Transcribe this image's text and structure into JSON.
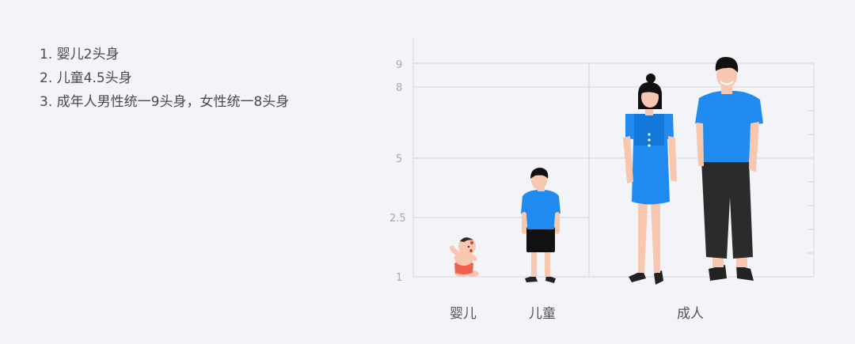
{
  "notes": [
    "1. 婴儿2头身",
    "2. 儿童4.5头身",
    "3. 成年人男性统一9头身，女性统一8头身"
  ],
  "scale": {
    "ticks": [
      "1",
      "2.5",
      "5",
      "8",
      "9"
    ]
  },
  "categories": {
    "baby": "婴儿",
    "child": "儿童",
    "adult": "成人"
  },
  "colors": {
    "background": "#f3f4f8",
    "grid": "#d4d6dc",
    "shirt_blue": "#1f8af0",
    "skin": "#f8c7b0",
    "hair": "#111111"
  }
}
